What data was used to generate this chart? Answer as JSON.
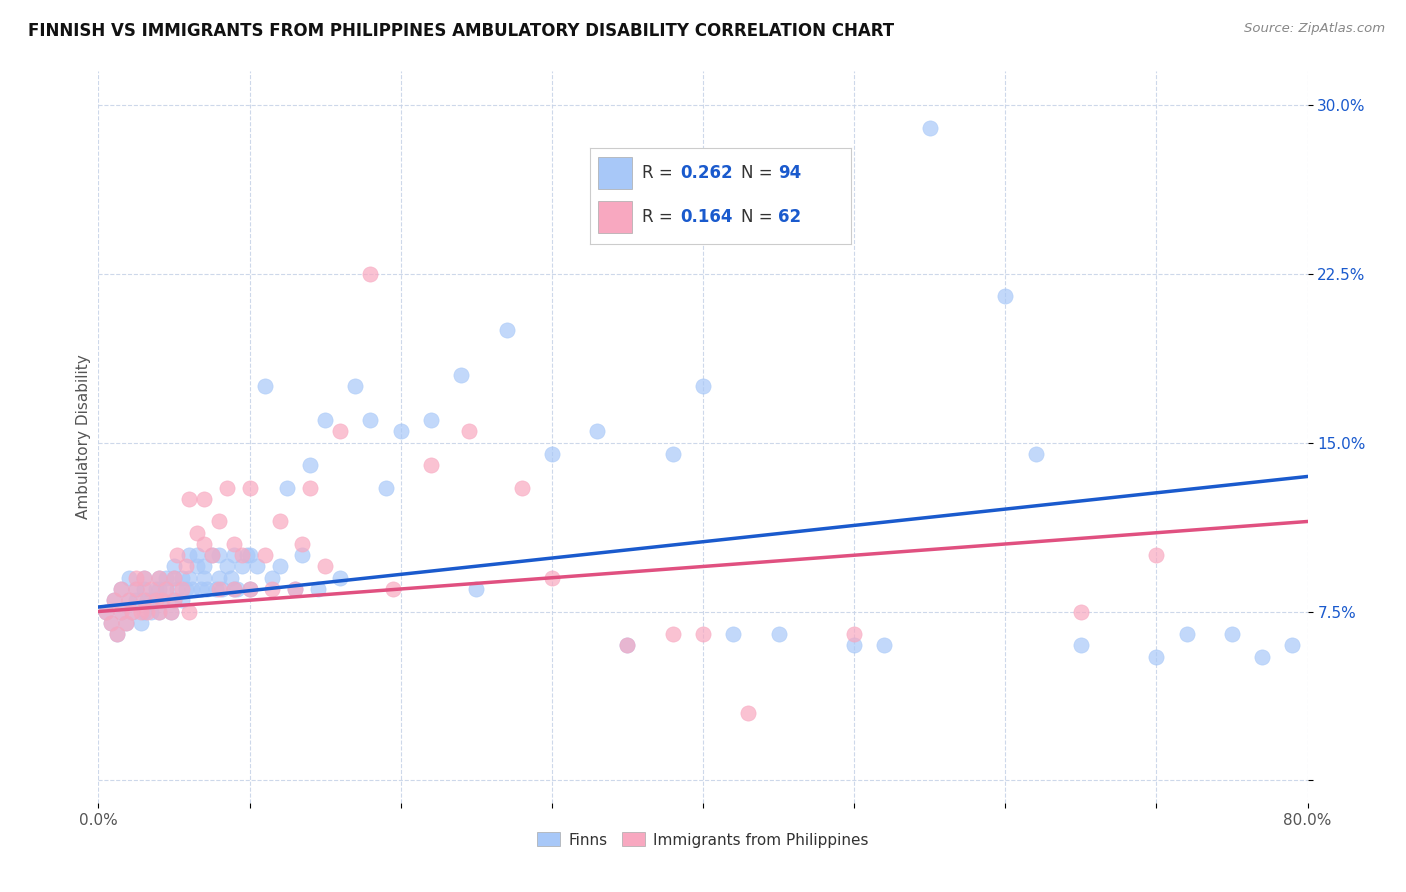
{
  "title": "FINNISH VS IMMIGRANTS FROM PHILIPPINES AMBULATORY DISABILITY CORRELATION CHART",
  "source": "Source: ZipAtlas.com",
  "ylabel": "Ambulatory Disability",
  "x_min": 0.0,
  "x_max": 0.8,
  "y_min": -0.01,
  "y_max": 0.315,
  "x_ticks": [
    0.0,
    0.1,
    0.2,
    0.3,
    0.4,
    0.5,
    0.6,
    0.7,
    0.8
  ],
  "x_tick_labels": [
    "0.0%",
    "",
    "",
    "",
    "",
    "",
    "",
    "",
    "80.0%"
  ],
  "y_ticks": [
    0.0,
    0.075,
    0.15,
    0.225,
    0.3
  ],
  "y_tick_labels": [
    "",
    "7.5%",
    "15.0%",
    "22.5%",
    "30.0%"
  ],
  "finns_R": 0.262,
  "finns_N": 94,
  "phil_R": 0.164,
  "phil_N": 62,
  "finns_color": "#a8c8f8",
  "phil_color": "#f8a8c0",
  "trend_finn_color": "#1a5acd",
  "trend_phil_color": "#e05080",
  "background_color": "#ffffff",
  "grid_color": "#c8d4e8",
  "legend_label_1": "Finns",
  "legend_label_2": "Immigrants from Philippines",
  "finns_x": [
    0.005,
    0.008,
    0.01,
    0.012,
    0.015,
    0.015,
    0.018,
    0.02,
    0.02,
    0.022,
    0.025,
    0.025,
    0.028,
    0.03,
    0.03,
    0.03,
    0.032,
    0.035,
    0.035,
    0.038,
    0.04,
    0.04,
    0.04,
    0.042,
    0.045,
    0.045,
    0.048,
    0.05,
    0.05,
    0.05,
    0.052,
    0.055,
    0.055,
    0.058,
    0.06,
    0.06,
    0.062,
    0.065,
    0.065,
    0.068,
    0.07,
    0.07,
    0.072,
    0.075,
    0.078,
    0.08,
    0.08,
    0.082,
    0.085,
    0.088,
    0.09,
    0.09,
    0.092,
    0.095,
    0.098,
    0.1,
    0.1,
    0.105,
    0.11,
    0.115,
    0.12,
    0.125,
    0.13,
    0.135,
    0.14,
    0.145,
    0.15,
    0.16,
    0.17,
    0.18,
    0.19,
    0.2,
    0.22,
    0.24,
    0.25,
    0.27,
    0.3,
    0.33,
    0.35,
    0.38,
    0.4,
    0.42,
    0.45,
    0.5,
    0.52,
    0.55,
    0.6,
    0.62,
    0.65,
    0.7,
    0.72,
    0.75,
    0.77,
    0.79
  ],
  "finns_y": [
    0.075,
    0.07,
    0.08,
    0.065,
    0.075,
    0.085,
    0.07,
    0.08,
    0.09,
    0.075,
    0.08,
    0.085,
    0.07,
    0.075,
    0.085,
    0.09,
    0.08,
    0.075,
    0.08,
    0.085,
    0.075,
    0.085,
    0.09,
    0.08,
    0.085,
    0.09,
    0.075,
    0.08,
    0.09,
    0.095,
    0.085,
    0.08,
    0.09,
    0.085,
    0.09,
    0.1,
    0.085,
    0.095,
    0.1,
    0.085,
    0.09,
    0.095,
    0.085,
    0.1,
    0.085,
    0.09,
    0.1,
    0.085,
    0.095,
    0.09,
    0.085,
    0.1,
    0.085,
    0.095,
    0.1,
    0.085,
    0.1,
    0.095,
    0.175,
    0.09,
    0.095,
    0.13,
    0.085,
    0.1,
    0.14,
    0.085,
    0.16,
    0.09,
    0.175,
    0.16,
    0.13,
    0.155,
    0.16,
    0.18,
    0.085,
    0.2,
    0.145,
    0.155,
    0.06,
    0.145,
    0.175,
    0.065,
    0.065,
    0.06,
    0.06,
    0.29,
    0.215,
    0.145,
    0.06,
    0.055,
    0.065,
    0.065,
    0.055,
    0.06
  ],
  "phil_x": [
    0.005,
    0.008,
    0.01,
    0.012,
    0.015,
    0.015,
    0.018,
    0.02,
    0.022,
    0.025,
    0.025,
    0.028,
    0.03,
    0.03,
    0.032,
    0.035,
    0.038,
    0.04,
    0.04,
    0.042,
    0.045,
    0.048,
    0.05,
    0.05,
    0.052,
    0.055,
    0.058,
    0.06,
    0.06,
    0.065,
    0.07,
    0.07,
    0.075,
    0.08,
    0.08,
    0.085,
    0.09,
    0.09,
    0.095,
    0.1,
    0.1,
    0.11,
    0.115,
    0.12,
    0.13,
    0.135,
    0.14,
    0.15,
    0.16,
    0.18,
    0.195,
    0.22,
    0.245,
    0.28,
    0.3,
    0.35,
    0.38,
    0.4,
    0.43,
    0.5,
    0.65,
    0.7
  ],
  "phil_y": [
    0.075,
    0.07,
    0.08,
    0.065,
    0.075,
    0.085,
    0.07,
    0.08,
    0.075,
    0.085,
    0.09,
    0.075,
    0.08,
    0.09,
    0.075,
    0.085,
    0.08,
    0.075,
    0.09,
    0.08,
    0.085,
    0.075,
    0.08,
    0.09,
    0.1,
    0.085,
    0.095,
    0.075,
    0.125,
    0.11,
    0.125,
    0.105,
    0.1,
    0.115,
    0.085,
    0.13,
    0.085,
    0.105,
    0.1,
    0.13,
    0.085,
    0.1,
    0.085,
    0.115,
    0.085,
    0.105,
    0.13,
    0.095,
    0.155,
    0.225,
    0.085,
    0.14,
    0.155,
    0.13,
    0.09,
    0.06,
    0.065,
    0.065,
    0.03,
    0.065,
    0.075,
    0.1
  ]
}
